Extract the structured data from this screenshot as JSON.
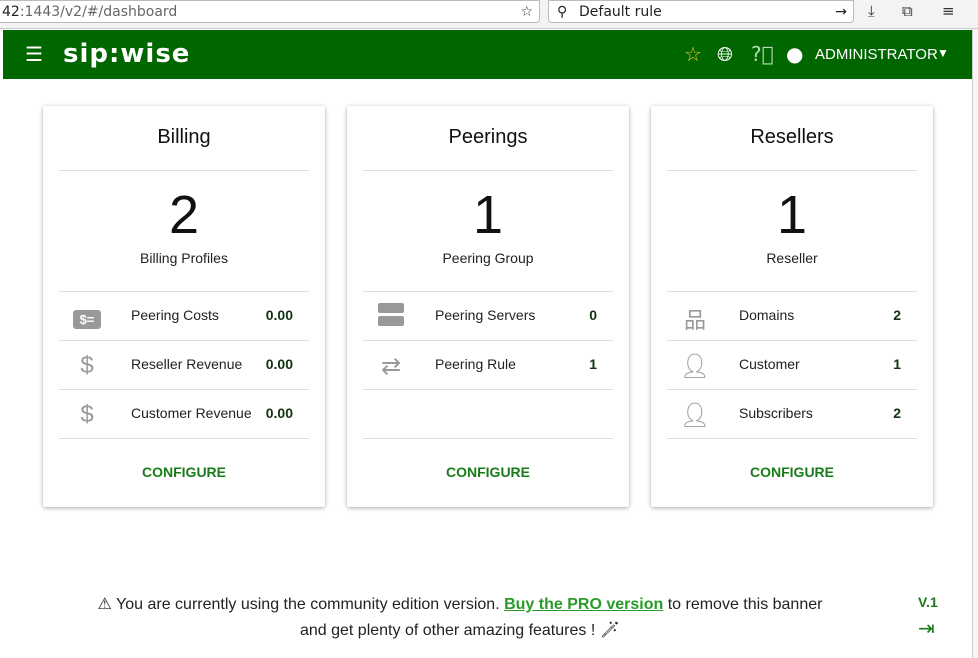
{
  "browser": {
    "url_host": "42",
    "url_rest": ":1443/v2/#/dashboard",
    "search_value": "Default rule"
  },
  "header": {
    "logo": "sip:wise",
    "user": "ADMINISTRATOR",
    "accent": "#006600"
  },
  "cards": [
    {
      "title": "Billing",
      "count": "2",
      "count_label": "Billing Profiles",
      "rows": [
        {
          "icon": "billing-card-icon",
          "label": "Peering Costs",
          "value": "0.00"
        },
        {
          "icon": "dollar-icon",
          "label": "Reseller Revenue",
          "value": "0.00"
        },
        {
          "icon": "dollar-icon",
          "label": "Customer Revenue",
          "value": "0.00"
        }
      ],
      "action": "CONFIGURE"
    },
    {
      "title": "Peerings",
      "count": "1",
      "count_label": "Peering Group",
      "rows": [
        {
          "icon": "server-icon",
          "label": "Peering Servers",
          "value": "0"
        },
        {
          "icon": "swap-icon",
          "label": "Peering Rule",
          "value": "1"
        }
      ],
      "action": "CONFIGURE"
    },
    {
      "title": "Resellers",
      "count": "1",
      "count_label": "Reseller",
      "rows": [
        {
          "icon": "sitemap-icon",
          "label": "Domains",
          "value": "2"
        },
        {
          "icon": "customer-icon",
          "label": "Customer",
          "value": "1"
        },
        {
          "icon": "person-icon",
          "label": "Subscribers",
          "value": "2"
        }
      ],
      "action": "CONFIGURE"
    }
  ],
  "banner": {
    "text1": "You are currently using the community edition version.",
    "link": "Buy the PRO version",
    "text2": "to remove this banner",
    "text3": "and get plenty of other amazing features !"
  },
  "footer": {
    "version": "V.1"
  }
}
